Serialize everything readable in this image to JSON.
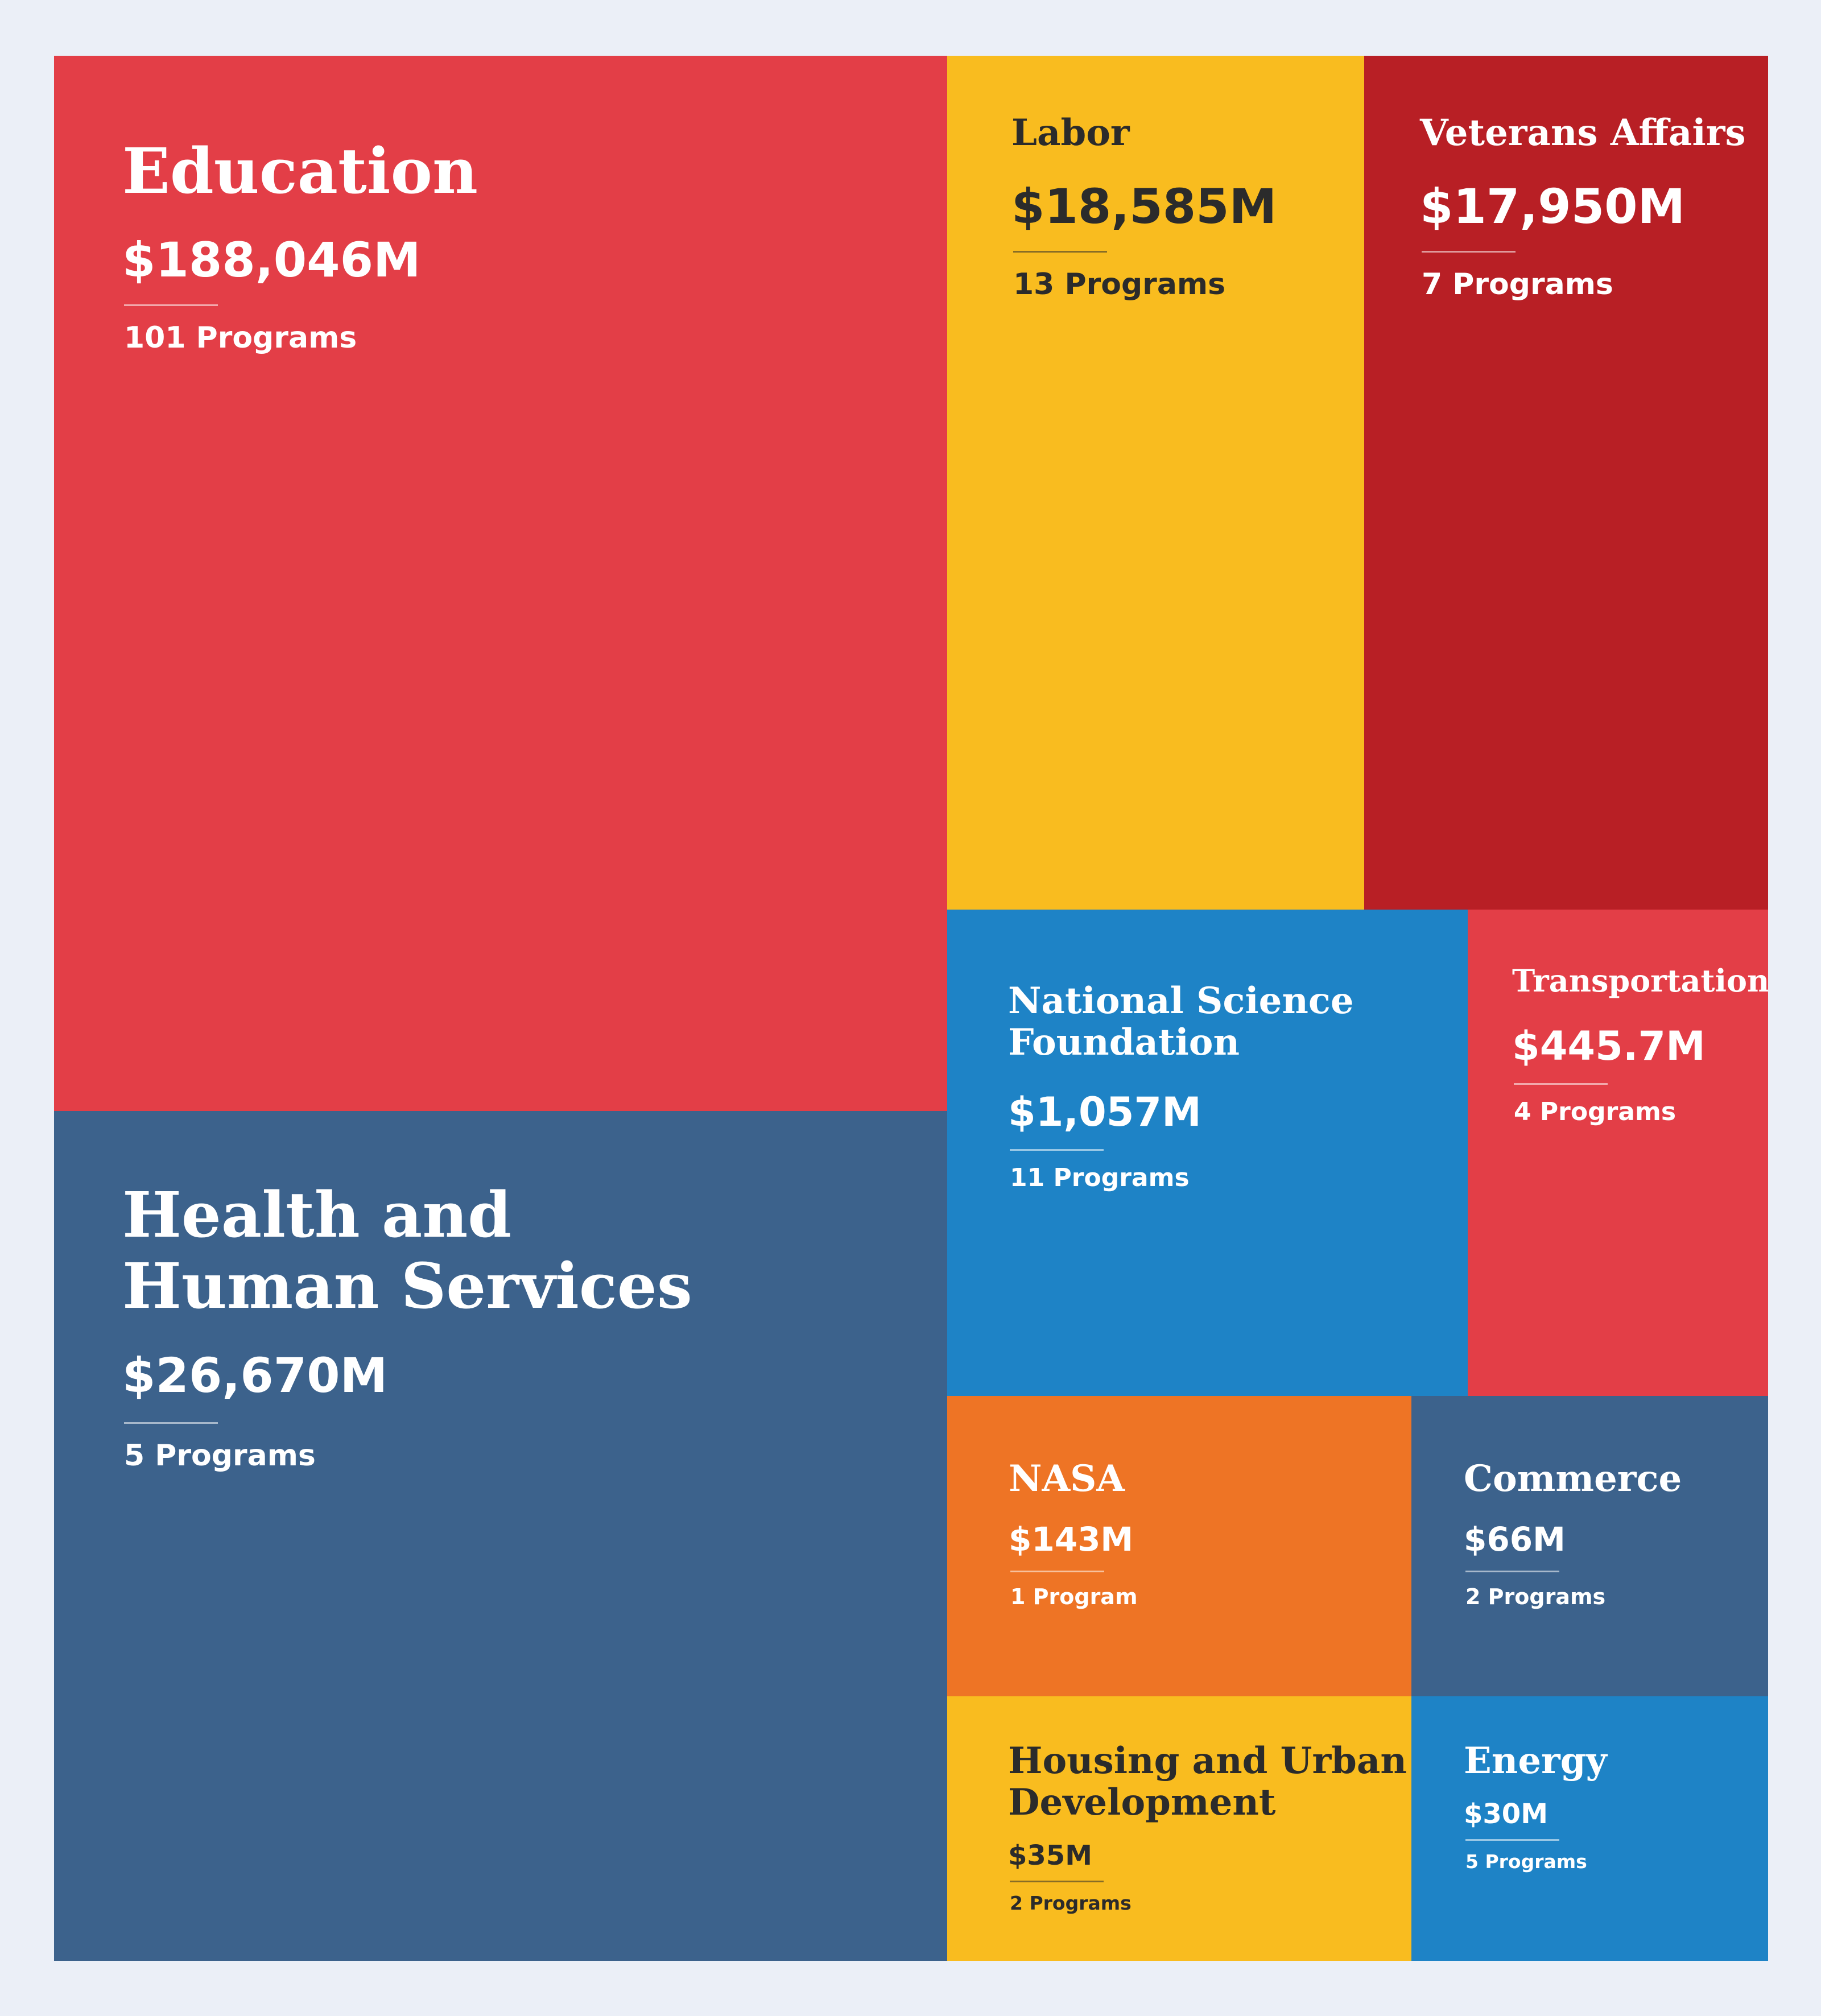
{
  "chart_data": {
    "type": "treemap",
    "title": "",
    "unit": "Millions of USD",
    "items": [
      {
        "id": "education",
        "label": "Education",
        "amount_label": "$188,046M",
        "value": 188046,
        "programs_label": "101 Programs",
        "programs": 101,
        "color": "#e33e47",
        "text_color": "#ffffff"
      },
      {
        "id": "health",
        "label": "Health and\nHuman Services",
        "amount_label": "$26,670M",
        "value": 26670,
        "programs_label": "5 Programs",
        "programs": 5,
        "color": "#3c628c",
        "text_color": "#ffffff"
      },
      {
        "id": "labor",
        "label": "Labor",
        "amount_label": "$18,585M",
        "value": 18585,
        "programs_label": "13 Programs",
        "programs": 13,
        "color": "#f9bc1f",
        "text_color": "#2b2b2b"
      },
      {
        "id": "veterans",
        "label": "Veterans Affairs",
        "amount_label": "$17,950M",
        "value": 17950,
        "programs_label": "7 Programs",
        "programs": 7,
        "color": "#b81f25",
        "text_color": "#ffffff"
      },
      {
        "id": "nsf",
        "label": "National Science\nFoundation",
        "amount_label": "$1,057M",
        "value": 1057,
        "programs_label": "11 Programs",
        "programs": 11,
        "color": "#1e83c6",
        "text_color": "#ffffff"
      },
      {
        "id": "transportation",
        "label": "Transportation",
        "amount_label": "$445.7M",
        "value": 445.7,
        "programs_label": "4 Programs",
        "programs": 4,
        "color": "#e33e47",
        "text_color": "#ffffff"
      },
      {
        "id": "nasa",
        "label": "NASA",
        "amount_label": "$143M",
        "value": 143,
        "programs_label": "1 Program",
        "programs": 1,
        "color": "#ee7425",
        "text_color": "#ffffff"
      },
      {
        "id": "commerce",
        "label": "Commerce",
        "amount_label": "$66M",
        "value": 66,
        "programs_label": "2 Programs",
        "programs": 2,
        "color": "#3c628c",
        "text_color": "#ffffff"
      },
      {
        "id": "hud",
        "label": "Housing and Urban\nDevelopment",
        "amount_label": "$35M",
        "value": 35,
        "programs_label": "2 Programs",
        "programs": 2,
        "color": "#f9bc1f",
        "text_color": "#2b2b2b"
      },
      {
        "id": "energy",
        "label": "Energy",
        "amount_label": "$30M",
        "value": 30,
        "programs_label": "5 Programs",
        "programs": 5,
        "color": "#1e83c6",
        "text_color": "#ffffff"
      }
    ]
  }
}
